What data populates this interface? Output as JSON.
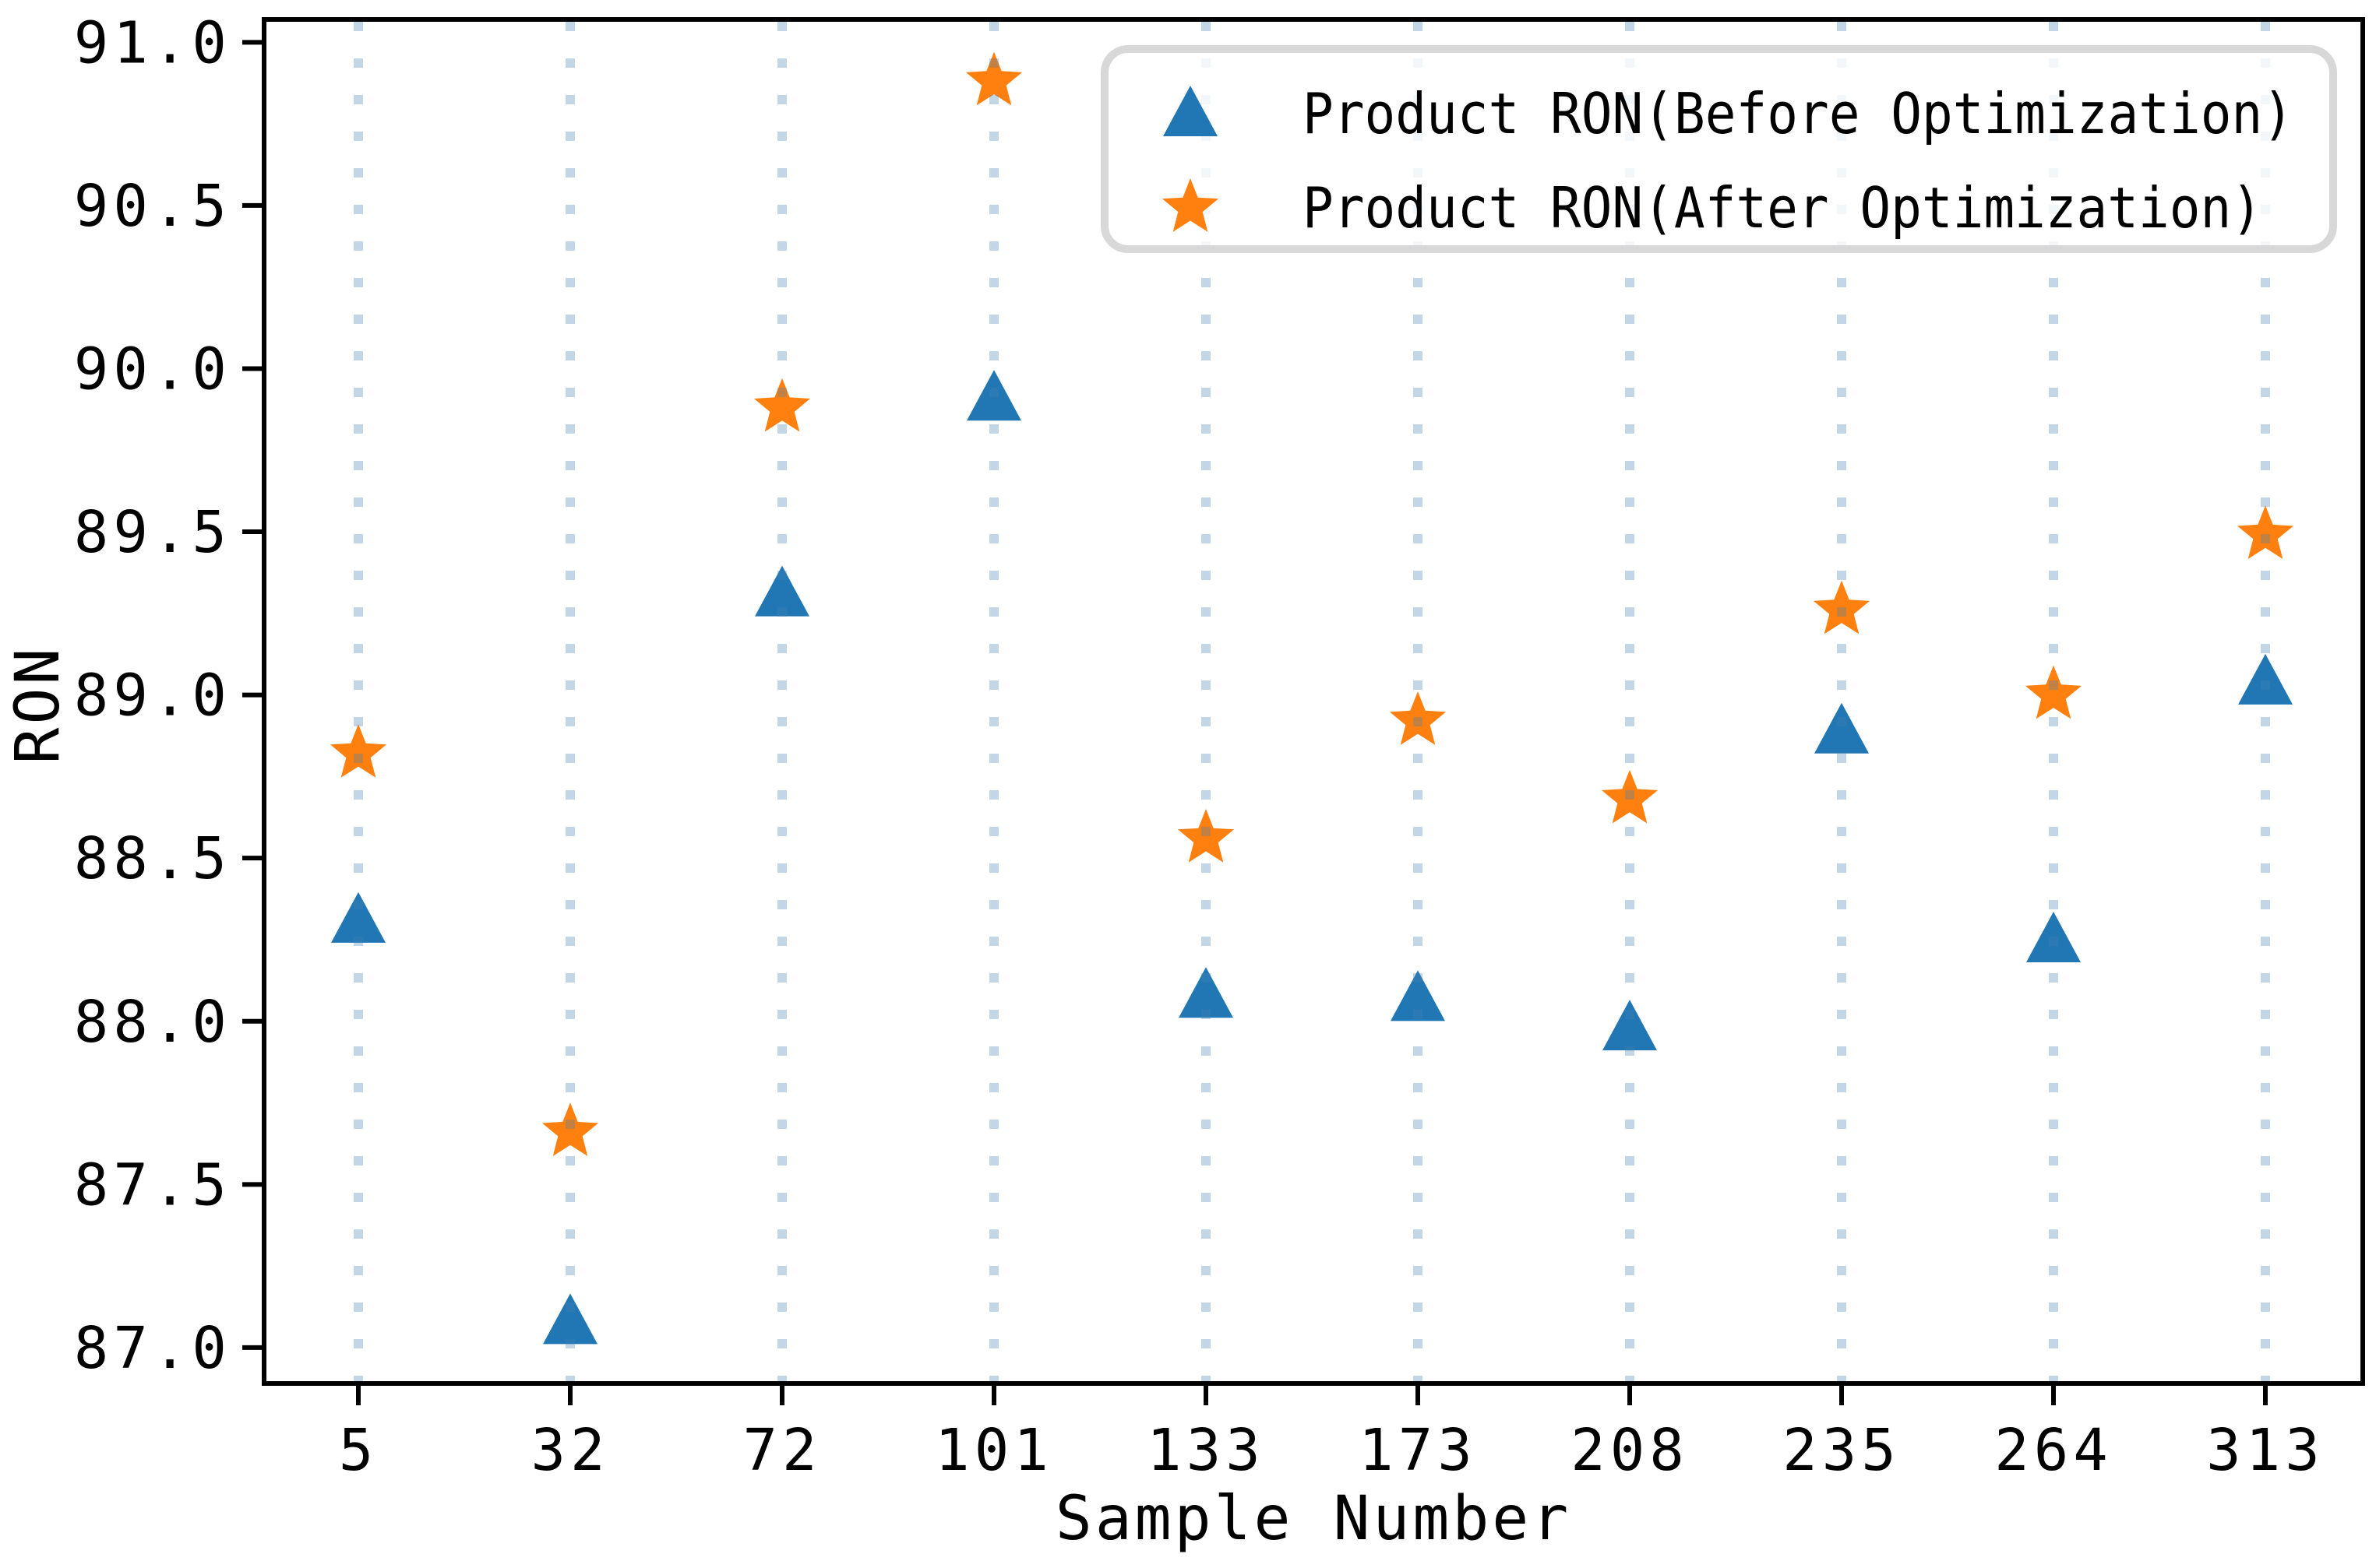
{
  "chart_data": {
    "type": "scatter",
    "title": "",
    "xlabel": "Sample Number",
    "ylabel": "RON",
    "categories": [
      "5",
      "32",
      "72",
      "101",
      "133",
      "173",
      "208",
      "235",
      "264",
      "313"
    ],
    "series": [
      {
        "name": "Product RON(Before Optimization)",
        "marker": "triangle",
        "color": "#2077b4",
        "values": [
          88.31,
          87.08,
          89.31,
          89.91,
          88.08,
          88.07,
          87.98,
          88.89,
          88.25,
          89.04
        ]
      },
      {
        "name": "Product RON(After Optimization)",
        "marker": "star",
        "color": "#ff800e",
        "values": [
          88.82,
          87.66,
          89.88,
          90.88,
          88.56,
          88.92,
          88.68,
          89.26,
          89.0,
          89.49
        ]
      }
    ],
    "yticks": [
      87.0,
      87.5,
      88.0,
      88.5,
      89.0,
      89.5,
      90.0,
      90.5,
      91.0
    ],
    "ytick_labels": [
      "87.0",
      "87.5",
      "88.0",
      "88.5",
      "89.0",
      "89.5",
      "90.0",
      "90.5",
      "91.0"
    ],
    "ylim": [
      86.89,
      91.07
    ],
    "grid": "vertical-dotted",
    "legend_position": "upper right"
  },
  "colors": {
    "before_series": "#2077b4",
    "after_series": "#ff800e",
    "gridline": "#4682b4",
    "gridline_opacity": 0.33,
    "frame": "#000000",
    "legend_border": "#d8d8d8",
    "legend_fill": "#ffffff"
  }
}
